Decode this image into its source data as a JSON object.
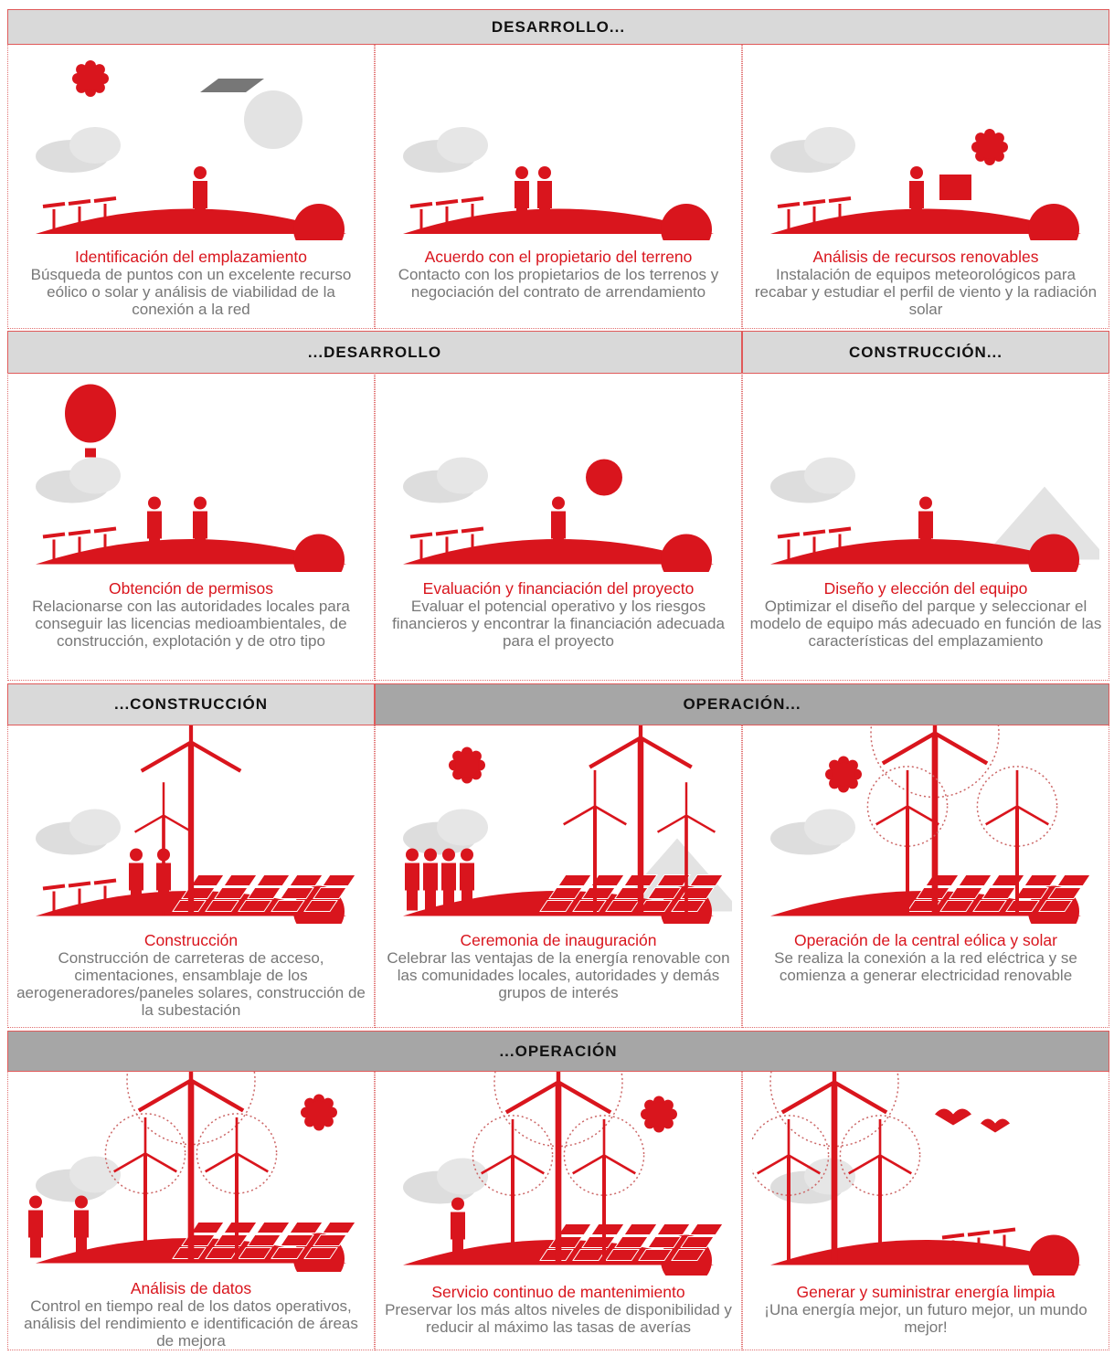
{
  "sections": [
    {
      "headers": [
        "DESARROLLO..."
      ],
      "cells": [
        {
          "title": "Identificación del emplazamiento",
          "description": "Búsqueda de puntos con un excelente recurso eólico o solar y análisis de viabilidad de la conexión a la red"
        },
        {
          "title": "Acuerdo con el propietario del terreno",
          "description": "Contacto con los propietarios de los terrenos y negociación del contrato de arrendamiento"
        },
        {
          "title": "Análisis de recursos renovables",
          "description": "Instalación de equipos meteorológicos para recabar y estudiar el perfil de viento y la radiación solar"
        }
      ]
    },
    {
      "headers": [
        "...DESARROLLO",
        "CONSTRUCCIÓN..."
      ],
      "cells": [
        {
          "title": "Obtención de permisos",
          "description": "Relacionarse con las autoridades locales para conseguir las licencias medioambientales, de construcción, explotación y de otro tipo"
        },
        {
          "title": "Evaluación y financiación del proyecto",
          "description": "Evaluar el potencial operativo y los riesgos financieros y encontrar la financiación adecuada para el proyecto"
        },
        {
          "title": "Diseño y elección del equipo",
          "description": "Optimizar el diseño del parque y seleccionar el modelo de equipo más adecuado en función de las características del emplazamiento"
        }
      ]
    },
    {
      "headers": [
        "...CONSTRUCCIÓN",
        "OPERACIÓN..."
      ],
      "cells": [
        {
          "title": "Construcción",
          "description": "Construcción de carreteras de acceso, cimentaciones, ensamblaje de los aerogeneradores/paneles solares, construcción de la subestación"
        },
        {
          "title": "Ceremonia de inauguración",
          "description": "Celebrar las ventajas de la energía renovable con las comunidades locales, autoridades y demás grupos de interés"
        },
        {
          "title": "Operación de la central eólica y solar",
          "description": "Se realiza la conexión a la red eléctrica y se comienza a generar electricidad renovable"
        }
      ]
    },
    {
      "headers": [
        "...OPERACIÓN"
      ],
      "cells": [
        {
          "title": "Análisis de datos",
          "description": "Control en tiempo real de los datos operativos, análisis del rendimiento e identificación de áreas de mejora"
        },
        {
          "title": "Servicio continuo de mantenimiento",
          "description": "Preservar los más altos niveles de disponibilidad y reducir al máximo las tasas de averías"
        },
        {
          "title": "Generar y suministrar energía limpia",
          "description": "¡Una energía mejor, un futuro mejor, un mundo mejor!"
        }
      ]
    }
  ]
}
